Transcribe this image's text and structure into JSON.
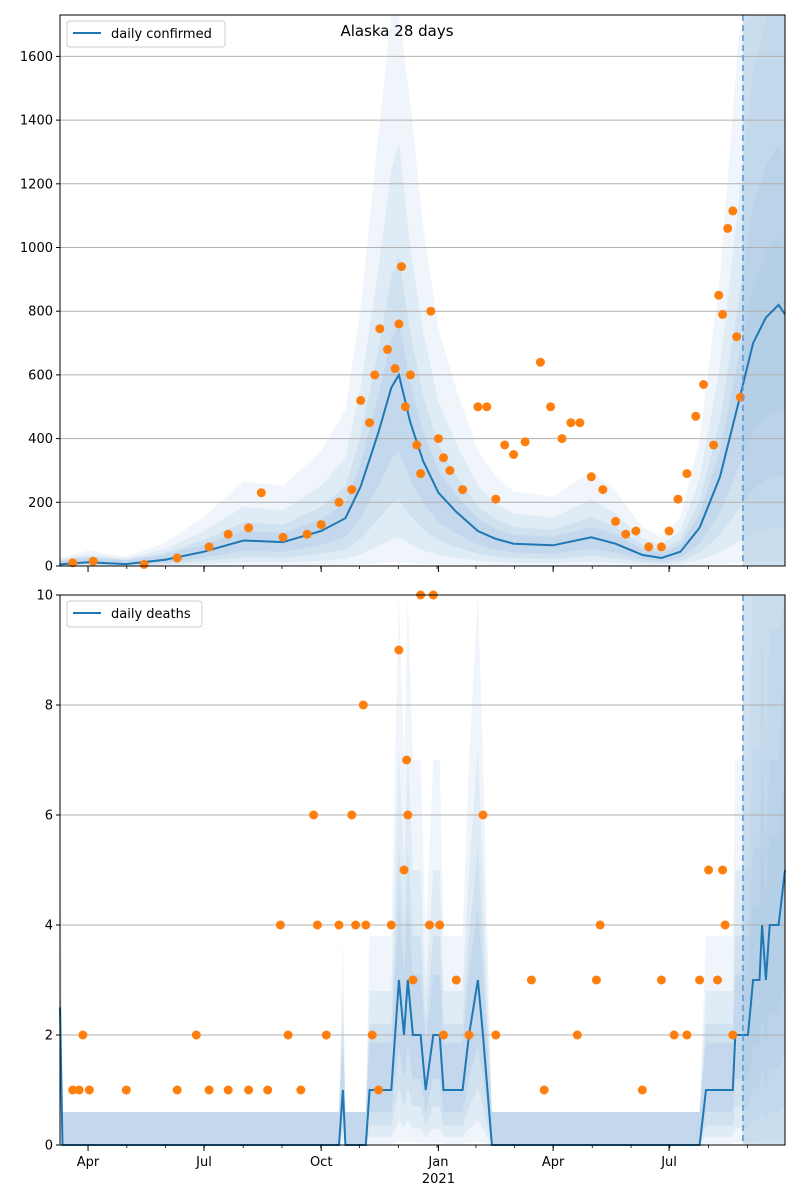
{
  "colors": {
    "line": "#1f77b4",
    "points": "#ff7f0e",
    "band": "#a9c8e2",
    "grid": "#b0b0b0",
    "axis": "#000000"
  },
  "chart_data": [
    {
      "type": "line",
      "title": "Alaska 28 days",
      "xlabel": "",
      "ylabel": "",
      "x_range": [
        "2020-03-10",
        "2021-09-30"
      ],
      "ylim": [
        0,
        1730
      ],
      "yticks": [
        0,
        200,
        400,
        600,
        800,
        1000,
        1200,
        1400,
        1600
      ],
      "grid": "horizontal",
      "legend": "top-left",
      "forecast_start": "2021-08-28",
      "series": [
        {
          "name": "daily confirmed",
          "kind": "line",
          "points": [
            [
              "2020-03-10",
              5
            ],
            [
              "2020-04-01",
              12
            ],
            [
              "2020-05-01",
              6
            ],
            [
              "2020-06-01",
              20
            ],
            [
              "2020-07-01",
              45
            ],
            [
              "2020-08-01",
              80
            ],
            [
              "2020-09-01",
              75
            ],
            [
              "2020-10-01",
              110
            ],
            [
              "2020-10-20",
              150
            ],
            [
              "2020-11-01",
              250
            ],
            [
              "2020-11-15",
              420
            ],
            [
              "2020-11-25",
              560
            ],
            [
              "2020-12-01",
              600
            ],
            [
              "2020-12-10",
              450
            ],
            [
              "2020-12-20",
              330
            ],
            [
              "2021-01-01",
              230
            ],
            [
              "2021-01-15",
              170
            ],
            [
              "2021-02-01",
              110
            ],
            [
              "2021-02-15",
              85
            ],
            [
              "2021-03-01",
              70
            ],
            [
              "2021-04-01",
              65
            ],
            [
              "2021-05-01",
              90
            ],
            [
              "2021-05-20",
              70
            ],
            [
              "2021-06-10",
              35
            ],
            [
              "2021-06-25",
              25
            ],
            [
              "2021-07-10",
              45
            ],
            [
              "2021-07-25",
              120
            ],
            [
              "2021-08-10",
              280
            ],
            [
              "2021-08-25",
              520
            ],
            [
              "2021-09-05",
              700
            ],
            [
              "2021-09-15",
              780
            ],
            [
              "2021-09-25",
              820
            ],
            [
              "2021-09-30",
              790
            ]
          ]
        },
        {
          "kind": "scatter",
          "points": [
            [
              "2020-03-20",
              10
            ],
            [
              "2020-04-05",
              15
            ],
            [
              "2020-05-15",
              5
            ],
            [
              "2020-06-10",
              25
            ],
            [
              "2020-07-05",
              60
            ],
            [
              "2020-07-20",
              100
            ],
            [
              "2020-08-05",
              120
            ],
            [
              "2020-08-15",
              230
            ],
            [
              "2020-09-01",
              90
            ],
            [
              "2020-09-20",
              100
            ],
            [
              "2020-10-01",
              130
            ],
            [
              "2020-10-15",
              200
            ],
            [
              "2020-10-25",
              240
            ],
            [
              "2020-11-01",
              520
            ],
            [
              "2020-11-08",
              450
            ],
            [
              "2020-11-12",
              600
            ],
            [
              "2020-11-16",
              745
            ],
            [
              "2020-11-22",
              680
            ],
            [
              "2020-11-28",
              620
            ],
            [
              "2020-12-01",
              760
            ],
            [
              "2020-12-03",
              940
            ],
            [
              "2020-12-06",
              500
            ],
            [
              "2020-12-10",
              600
            ],
            [
              "2020-12-15",
              380
            ],
            [
              "2020-12-18",
              290
            ],
            [
              "2020-12-26",
              800
            ],
            [
              "2021-01-01",
              400
            ],
            [
              "2021-01-05",
              340
            ],
            [
              "2021-01-10",
              300
            ],
            [
              "2021-01-20",
              240
            ],
            [
              "2021-02-01",
              500
            ],
            [
              "2021-02-08",
              500
            ],
            [
              "2021-02-15",
              210
            ],
            [
              "2021-02-22",
              380
            ],
            [
              "2021-03-01",
              350
            ],
            [
              "2021-03-10",
              390
            ],
            [
              "2021-03-22",
              640
            ],
            [
              "2021-03-30",
              500
            ],
            [
              "2021-04-08",
              400
            ],
            [
              "2021-04-15",
              450
            ],
            [
              "2021-04-22",
              450
            ],
            [
              "2021-05-01",
              280
            ],
            [
              "2021-05-10",
              240
            ],
            [
              "2021-05-20",
              140
            ],
            [
              "2021-05-28",
              100
            ],
            [
              "2021-06-05",
              110
            ],
            [
              "2021-06-15",
              60
            ],
            [
              "2021-06-25",
              60
            ],
            [
              "2021-07-01",
              110
            ],
            [
              "2021-07-08",
              210
            ],
            [
              "2021-07-15",
              290
            ],
            [
              "2021-07-22",
              470
            ],
            [
              "2021-07-28",
              570
            ],
            [
              "2021-08-05",
              380
            ],
            [
              "2021-08-09",
              850
            ],
            [
              "2021-08-12",
              790
            ],
            [
              "2021-08-16",
              1060
            ],
            [
              "2021-08-20",
              1115
            ],
            [
              "2021-08-23",
              720
            ],
            [
              "2021-08-26",
              530
            ]
          ]
        }
      ]
    },
    {
      "type": "line",
      "title": "",
      "xlabel": "",
      "ylabel": "",
      "x_range": [
        "2020-03-10",
        "2021-09-30"
      ],
      "ylim": [
        0,
        10
      ],
      "yticks": [
        0,
        2,
        4,
        6,
        8,
        10
      ],
      "grid": "horizontal",
      "legend": "top-left",
      "forecast_start": "2021-08-28",
      "xticks": [
        {
          "date": "2020-04-01",
          "label": "Apr"
        },
        {
          "date": "2020-07-01",
          "label": "Jul"
        },
        {
          "date": "2020-10-01",
          "label": "Oct"
        },
        {
          "date": "2021-01-01",
          "label": "Jan",
          "sublabel": "2021"
        },
        {
          "date": "2021-04-01",
          "label": "Apr"
        },
        {
          "date": "2021-07-01",
          "label": "Jul"
        }
      ],
      "series": [
        {
          "name": "daily deaths",
          "kind": "line",
          "points": [
            [
              "2020-03-10",
              2.5
            ],
            [
              "2020-03-12",
              0
            ],
            [
              "2020-10-15",
              0
            ],
            [
              "2020-10-18",
              1
            ],
            [
              "2020-10-20",
              0
            ],
            [
              "2020-11-05",
              0
            ],
            [
              "2020-11-08",
              1
            ],
            [
              "2020-11-25",
              1
            ],
            [
              "2020-11-28",
              2
            ],
            [
              "2020-12-01",
              3
            ],
            [
              "2020-12-05",
              2
            ],
            [
              "2020-12-08",
              3
            ],
            [
              "2020-12-12",
              2
            ],
            [
              "2020-12-18",
              2
            ],
            [
              "2020-12-22",
              1
            ],
            [
              "2020-12-28",
              2
            ],
            [
              "2021-01-02",
              2
            ],
            [
              "2021-01-05",
              1
            ],
            [
              "2021-01-20",
              1
            ],
            [
              "2021-01-25",
              2
            ],
            [
              "2021-02-01",
              3
            ],
            [
              "2021-02-05",
              2
            ],
            [
              "2021-02-12",
              0
            ],
            [
              "2021-07-25",
              0
            ],
            [
              "2021-07-30",
              1
            ],
            [
              "2021-08-20",
              1
            ],
            [
              "2021-08-22",
              2
            ],
            [
              "2021-08-25",
              2
            ],
            [
              "2021-09-01",
              2
            ],
            [
              "2021-09-05",
              3
            ],
            [
              "2021-09-10",
              3
            ],
            [
              "2021-09-12",
              4
            ],
            [
              "2021-09-15",
              3
            ],
            [
              "2021-09-18",
              4
            ],
            [
              "2021-09-25",
              4
            ],
            [
              "2021-09-30",
              5
            ]
          ]
        },
        {
          "kind": "scatter",
          "points": [
            [
              "2020-03-20",
              1
            ],
            [
              "2020-03-25",
              1
            ],
            [
              "2020-03-28",
              2
            ],
            [
              "2020-04-02",
              1
            ],
            [
              "2020-05-01",
              1
            ],
            [
              "2020-06-10",
              1
            ],
            [
              "2020-06-25",
              2
            ],
            [
              "2020-07-05",
              1
            ],
            [
              "2020-07-20",
              1
            ],
            [
              "2020-08-05",
              1
            ],
            [
              "2020-08-20",
              1
            ],
            [
              "2020-08-30",
              4
            ],
            [
              "2020-09-05",
              2
            ],
            [
              "2020-09-15",
              1
            ],
            [
              "2020-09-25",
              6
            ],
            [
              "2020-09-28",
              4
            ],
            [
              "2020-10-05",
              2
            ],
            [
              "2020-10-15",
              4
            ],
            [
              "2020-10-25",
              6
            ],
            [
              "2020-10-28",
              4
            ],
            [
              "2020-11-03",
              8
            ],
            [
              "2020-11-05",
              4
            ],
            [
              "2020-11-10",
              2
            ],
            [
              "2020-11-15",
              1
            ],
            [
              "2020-11-25",
              4
            ],
            [
              "2020-12-01",
              9
            ],
            [
              "2020-12-05",
              5
            ],
            [
              "2020-12-07",
              7
            ],
            [
              "2020-12-08",
              6
            ],
            [
              "2020-12-12",
              3
            ],
            [
              "2020-12-18",
              10
            ],
            [
              "2020-12-25",
              4
            ],
            [
              "2020-12-28",
              10
            ],
            [
              "2021-01-02",
              4
            ],
            [
              "2021-01-05",
              2
            ],
            [
              "2021-01-15",
              3
            ],
            [
              "2021-01-25",
              2
            ],
            [
              "2021-02-05",
              6
            ],
            [
              "2021-02-15",
              2
            ],
            [
              "2021-03-15",
              3
            ],
            [
              "2021-03-25",
              1
            ],
            [
              "2021-04-20",
              2
            ],
            [
              "2021-05-05",
              3
            ],
            [
              "2021-05-08",
              4
            ],
            [
              "2021-06-10",
              1
            ],
            [
              "2021-06-25",
              3
            ],
            [
              "2021-07-05",
              2
            ],
            [
              "2021-07-15",
              2
            ],
            [
              "2021-07-25",
              3
            ],
            [
              "2021-08-01",
              5
            ],
            [
              "2021-08-08",
              3
            ],
            [
              "2021-08-12",
              5
            ],
            [
              "2021-08-14",
              4
            ],
            [
              "2021-08-20",
              2
            ]
          ]
        }
      ]
    }
  ]
}
